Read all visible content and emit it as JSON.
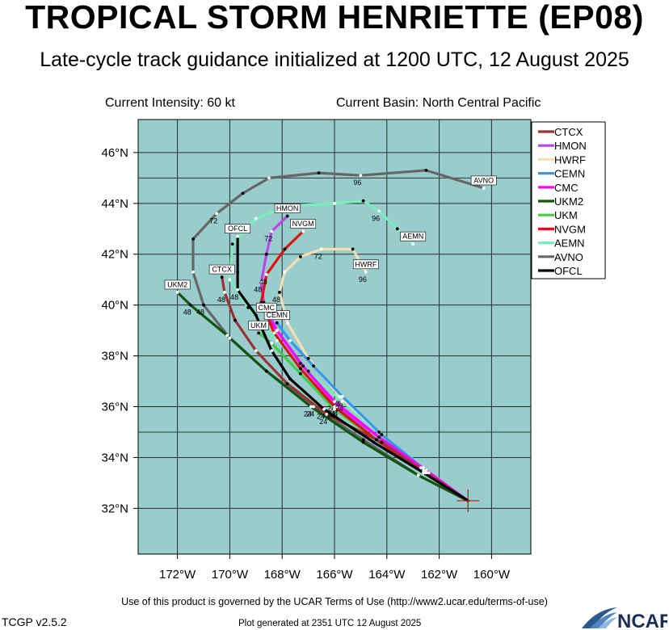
{
  "header": {
    "title": "TROPICAL STORM HENRIETTE (EP08)",
    "subtitle": "Late-cycle track guidance initialized at 1200 UTC, 12 August 2025",
    "current_intensity": "Current Intensity: 60 kt",
    "current_basin": "Current Basin: North Central Pacific"
  },
  "footer": {
    "terms": "Use of this product is governed by the UCAR Terms of Use (http://www2.ucar.edu/terms-of-use)",
    "version": "TCGP v2.5.2",
    "generated": "Plot generated at 2351 UTC   12 August 2025",
    "logo_text": "NCAR"
  },
  "colors": {
    "ocean": "#99cccc",
    "grid": "#2b2b2b",
    "CTCX": "#993333",
    "HMON": "#bb44ee",
    "HWRF": "#f5deb3",
    "CEMN": "#3399ee",
    "CMC": "#ff00ff",
    "UKM2": "#115511",
    "UKM": "#44cc44",
    "NVGM": "#dd1111",
    "AEMN": "#77eebb",
    "AVNO": "#666666",
    "OFCL": "#000000"
  },
  "chart_data": {
    "type": "line",
    "xlim": [
      -173.5,
      -158.5
    ],
    "ylim": [
      30.2,
      47.3
    ],
    "x_ticks": [
      -172,
      -170,
      -168,
      -166,
      -164,
      -162,
      -160
    ],
    "x_tick_labels": [
      "172°W",
      "170°W",
      "168°W",
      "166°W",
      "164°W",
      "162°W",
      "160°W"
    ],
    "y_ticks": [
      32,
      34,
      36,
      38,
      40,
      42,
      44,
      46
    ],
    "y_tick_labels": [
      "32°N",
      "34°N",
      "36°N",
      "38°N",
      "40°N",
      "42°N",
      "44°N",
      "46°N"
    ],
    "grid": true,
    "legend_position": "top-right",
    "current_position": [
      -160.9,
      32.3
    ],
    "series": [
      {
        "name": "CTCX",
        "points": [
          [
            -160.9,
            32.3
          ],
          [
            -162.5,
            33.4
          ],
          [
            -164.2,
            34.6
          ],
          [
            -166.3,
            35.7
          ],
          [
            -167.8,
            36.9
          ],
          [
            -169.0,
            38.2
          ],
          [
            -169.8,
            39.4
          ],
          [
            -170.2,
            40.5
          ],
          [
            -170.3,
            41.1
          ]
        ],
        "tick_labels": [
          {
            "i": 3,
            "text": "24"
          },
          {
            "i": 7,
            "text": "48"
          }
        ]
      },
      {
        "name": "HMON",
        "points": [
          [
            -160.9,
            32.3
          ],
          [
            -162.6,
            33.5
          ],
          [
            -164.3,
            34.8
          ],
          [
            -165.9,
            36.0
          ],
          [
            -167.2,
            37.6
          ],
          [
            -168.2,
            39.0
          ],
          [
            -168.7,
            40.1
          ],
          [
            -168.8,
            40.9
          ],
          [
            -168.6,
            42.0
          ],
          [
            -168.4,
            42.9
          ],
          [
            -167.8,
            43.5
          ]
        ],
        "tick_labels": [
          {
            "i": 3,
            "text": "24"
          },
          {
            "i": 7,
            "text": "48"
          },
          {
            "i": 9,
            "text": "72"
          }
        ]
      },
      {
        "name": "HWRF",
        "points": [
          [
            -160.9,
            32.3
          ],
          [
            -162.7,
            33.6
          ],
          [
            -164.3,
            35.0
          ],
          [
            -165.8,
            36.4
          ],
          [
            -167.0,
            37.9
          ],
          [
            -167.8,
            39.3
          ],
          [
            -168.1,
            40.5
          ],
          [
            -167.9,
            41.3
          ],
          [
            -167.3,
            41.9
          ],
          [
            -166.5,
            42.2
          ],
          [
            -165.3,
            42.2
          ],
          [
            -164.8,
            41.3
          ]
        ],
        "tick_labels": [
          {
            "i": 3,
            "text": "24"
          },
          {
            "i": 6,
            "text": "48"
          },
          {
            "i": 9,
            "text": "72"
          },
          {
            "i": 11,
            "text": "96"
          }
        ]
      },
      {
        "name": "CEMN",
        "points": [
          [
            -160.9,
            32.3
          ],
          [
            -162.4,
            33.4
          ],
          [
            -164.2,
            34.9
          ],
          [
            -165.7,
            36.4
          ],
          [
            -166.8,
            37.6
          ],
          [
            -167.7,
            38.6
          ],
          [
            -168.2,
            39.3
          ]
        ],
        "tick_labels": [
          {
            "i": 3,
            "text": "24"
          }
        ]
      },
      {
        "name": "CMC",
        "points": [
          [
            -160.9,
            32.3
          ],
          [
            -162.5,
            33.5
          ],
          [
            -164.3,
            34.8
          ],
          [
            -166.0,
            36.2
          ],
          [
            -167.3,
            37.7
          ],
          [
            -168.2,
            39.0
          ],
          [
            -168.6,
            39.6
          ]
        ],
        "tick_labels": [
          {
            "i": 3,
            "text": "24"
          }
        ]
      },
      {
        "name": "UKM2",
        "points": [
          [
            -160.9,
            32.3
          ],
          [
            -162.8,
            33.3
          ],
          [
            -164.9,
            34.6
          ],
          [
            -166.9,
            36.0
          ],
          [
            -168.6,
            37.4
          ],
          [
            -170.1,
            38.8
          ],
          [
            -171.5,
            40.0
          ],
          [
            -172.0,
            40.5
          ]
        ],
        "tick_labels": [
          {
            "i": 3,
            "text": "24"
          },
          {
            "i": 6,
            "text": "48"
          }
        ]
      },
      {
        "name": "UKM",
        "points": [
          [
            -160.9,
            32.3
          ],
          [
            -162.6,
            33.4
          ],
          [
            -164.4,
            34.7
          ],
          [
            -166.0,
            35.9
          ],
          [
            -167.3,
            37.3
          ],
          [
            -168.4,
            38.5
          ],
          [
            -168.9,
            38.9
          ]
        ],
        "tick_labels": [
          {
            "i": 3,
            "text": "24"
          }
        ]
      },
      {
        "name": "NVGM",
        "points": [
          [
            -160.9,
            32.3
          ],
          [
            -162.6,
            33.4
          ],
          [
            -164.4,
            34.7
          ],
          [
            -166.0,
            36.0
          ],
          [
            -167.3,
            37.5
          ],
          [
            -168.3,
            38.9
          ],
          [
            -168.8,
            40.1
          ],
          [
            -168.6,
            41.2
          ],
          [
            -167.9,
            42.2
          ],
          [
            -167.2,
            42.9
          ]
        ],
        "tick_labels": [
          {
            "i": 3,
            "text": "24"
          },
          {
            "i": 7,
            "text": "48"
          }
        ]
      },
      {
        "name": "AEMN",
        "points": [
          [
            -160.9,
            32.3
          ],
          [
            -162.6,
            33.6
          ],
          [
            -164.2,
            34.9
          ],
          [
            -165.7,
            36.2
          ],
          [
            -167.0,
            37.4
          ],
          [
            -168.2,
            38.6
          ],
          [
            -169.3,
            39.9
          ],
          [
            -170.0,
            41.0
          ],
          [
            -169.9,
            42.4
          ],
          [
            -169.0,
            43.4
          ],
          [
            -167.8,
            43.9
          ],
          [
            -166.0,
            44.0
          ],
          [
            -164.9,
            44.1
          ],
          [
            -164.3,
            43.7
          ],
          [
            -163.6,
            43.0
          ],
          [
            -163.0,
            42.4
          ]
        ],
        "tick_labels": [
          {
            "i": 3,
            "text": "24"
          },
          {
            "i": 13,
            "text": "96"
          }
        ]
      },
      {
        "name": "AVNO",
        "points": [
          [
            -160.9,
            32.3
          ],
          [
            -162.8,
            33.3
          ],
          [
            -164.9,
            34.7
          ],
          [
            -166.8,
            36.0
          ],
          [
            -168.6,
            37.4
          ],
          [
            -170.0,
            38.7
          ],
          [
            -171.0,
            40.0
          ],
          [
            -171.4,
            41.3
          ],
          [
            -171.4,
            42.6
          ],
          [
            -170.5,
            43.6
          ],
          [
            -169.5,
            44.4
          ],
          [
            -168.5,
            45.0
          ],
          [
            -166.6,
            45.2
          ],
          [
            -165.0,
            45.1
          ],
          [
            -162.5,
            45.3
          ],
          [
            -160.3,
            44.6
          ]
        ],
        "tick_labels": [
          {
            "i": 3,
            "text": "24"
          },
          {
            "i": 6,
            "text": "48"
          },
          {
            "i": 9,
            "text": "72"
          },
          {
            "i": 13,
            "text": "96"
          }
        ]
      },
      {
        "name": "OFCL",
        "points": [
          [
            -160.9,
            32.3
          ],
          [
            -162.6,
            33.4
          ],
          [
            -164.5,
            34.6
          ],
          [
            -166.4,
            35.9
          ],
          [
            -167.7,
            37.1
          ],
          [
            -168.4,
            38.2
          ],
          [
            -169.0,
            39.6
          ],
          [
            -169.7,
            40.6
          ],
          [
            -169.7,
            41.3
          ],
          [
            -169.7,
            42.7
          ]
        ],
        "tick_labels": [
          {
            "i": 3,
            "text": "24"
          },
          {
            "i": 7,
            "text": "48"
          }
        ]
      }
    ]
  }
}
